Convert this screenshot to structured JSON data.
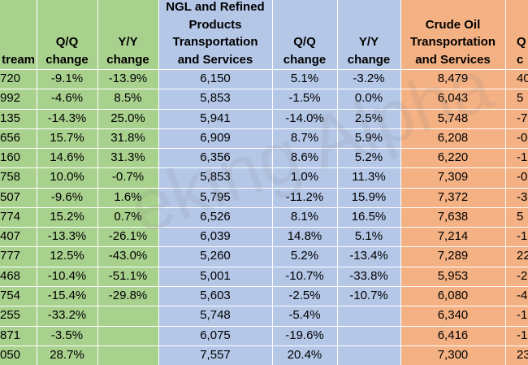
{
  "watermark": "eking Alpha",
  "table": {
    "header": [
      [
        "tream"
      ],
      [
        "Q/Q",
        "change"
      ],
      [
        "Y/Y",
        "change"
      ],
      [
        "NGL and Refined",
        "Products",
        "Transportation",
        "and Services"
      ],
      [
        "Q/Q",
        "change"
      ],
      [
        "Y/Y",
        "change"
      ],
      [
        "Crude Oil",
        "Transportation",
        "and Services"
      ],
      [
        "Q",
        "c"
      ]
    ],
    "rows": [
      [
        "720",
        "-9.1%",
        "-13.9%",
        "6,150",
        "5.1%",
        "-3.2%",
        "8,479",
        "40"
      ],
      [
        "992",
        "-4.6%",
        "8.5%",
        "5,853",
        "-1.5%",
        "0.0%",
        "6,043",
        "5"
      ],
      [
        "135",
        "-14.3%",
        "25.0%",
        "5,941",
        "-14.0%",
        "2.5%",
        "5,748",
        "-7"
      ],
      [
        "656",
        "15.7%",
        "31.8%",
        "6,909",
        "8.7%",
        "5.9%",
        "6,208",
        "-0"
      ],
      [
        "160",
        "14.6%",
        "31.3%",
        "6,356",
        "8.6%",
        "5.2%",
        "6,220",
        "-1"
      ],
      [
        "758",
        "10.0%",
        "-0.7%",
        "5,853",
        "1.0%",
        "11.3%",
        "7,309",
        "-0"
      ],
      [
        "507",
        "-9.6%",
        "1.6%",
        "5,795",
        "-11.2%",
        "15.9%",
        "7,372",
        "-3"
      ],
      [
        "774",
        "15.2%",
        "0.7%",
        "6,526",
        "8.1%",
        "16.5%",
        "7,638",
        "5"
      ],
      [
        "407",
        "-13.3%",
        "-26.1%",
        "6,039",
        "14.8%",
        "5.1%",
        "7,214",
        "-1"
      ],
      [
        "777",
        "12.5%",
        "-43.0%",
        "5,260",
        "5.2%",
        "-13.4%",
        "7,289",
        "22"
      ],
      [
        "468",
        "-10.4%",
        "-51.1%",
        "5,001",
        "-10.7%",
        "-33.8%",
        "5,953",
        "-2"
      ],
      [
        "754",
        "-15.4%",
        "-29.8%",
        "5,603",
        "-2.5%",
        "-10.7%",
        "6,080",
        "-4"
      ],
      [
        "255",
        "-33.2%",
        null,
        "5,748",
        "-5.4%",
        null,
        "6,340",
        "-1"
      ],
      [
        "871",
        "-3.5%",
        null,
        "6,075",
        "-19.6%",
        null,
        "6,416",
        "-1"
      ],
      [
        "050",
        "28.7%",
        null,
        "7,557",
        "20.4%",
        null,
        "7,300",
        "23"
      ]
    ]
  }
}
